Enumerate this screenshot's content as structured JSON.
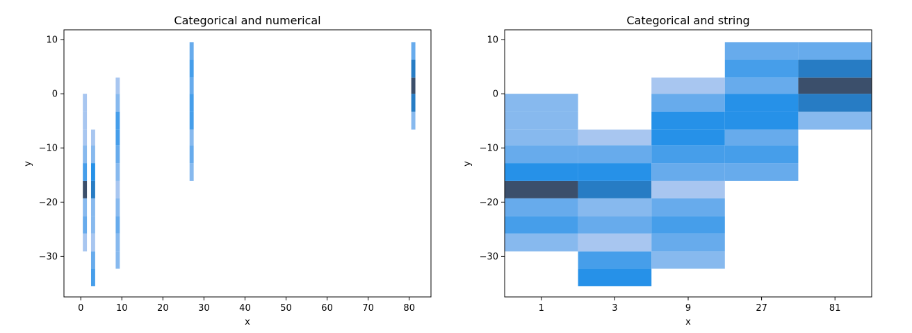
{
  "chart_data": [
    {
      "type": "heatmap",
      "title": "Categorical and numerical",
      "xlabel": "x",
      "ylabel": "y",
      "xlim": [
        -4.1,
        85.3
      ],
      "ylim": [
        -37.5,
        11.8
      ],
      "xticks": [
        0,
        10,
        20,
        30,
        40,
        50,
        60,
        70,
        80
      ],
      "xtick_labels": [
        "0",
        "10",
        "20",
        "30",
        "40",
        "50",
        "60",
        "70",
        "80"
      ],
      "yticks": [
        10,
        0,
        -10,
        -20,
        -30
      ],
      "ytick_labels": [
        "10",
        "0",
        "−10",
        "−20",
        "−30"
      ],
      "bar_width": 1,
      "columns": [
        {
          "x": 1,
          "cells": [
            {
              "y0": -29.1,
              "y1": -25.8,
              "count": 1
            },
            {
              "y0": -25.8,
              "y1": -22.6,
              "count": 3
            },
            {
              "y0": -22.6,
              "y1": -19.3,
              "count": 2
            },
            {
              "y0": -19.3,
              "y1": -16.1,
              "count": 8
            },
            {
              "y0": -16.1,
              "y1": -12.8,
              "count": 4
            },
            {
              "y0": -12.8,
              "y1": -9.5,
              "count": 2
            },
            {
              "y0": -9.5,
              "y1": -6.6,
              "count": 1
            },
            {
              "y0": -6.6,
              "y1": -3.3,
              "count": 1
            },
            {
              "y0": -3.3,
              "y1": 0,
              "count": 1
            }
          ]
        },
        {
          "x": 3,
          "cells": [
            {
              "y0": -35.5,
              "y1": -32.3,
              "count": 4
            },
            {
              "y0": -32.3,
              "y1": -29.1,
              "count": 3
            },
            {
              "y0": -29.1,
              "y1": -25.8,
              "count": 1
            },
            {
              "y0": -25.8,
              "y1": -22.6,
              "count": 2
            },
            {
              "y0": -22.6,
              "y1": -19.3,
              "count": 2
            },
            {
              "y0": -19.3,
              "y1": -16.1,
              "count": 6
            },
            {
              "y0": -16.1,
              "y1": -12.8,
              "count": 5
            },
            {
              "y0": -12.8,
              "y1": -9.5,
              "count": 2
            },
            {
              "y0": -9.5,
              "y1": -6.6,
              "count": 1
            }
          ]
        },
        {
          "x": 9,
          "cells": [
            {
              "y0": -32.3,
              "y1": -29.1,
              "count": 2
            },
            {
              "y0": -29.1,
              "y1": -25.8,
              "count": 2
            },
            {
              "y0": -25.8,
              "y1": -22.6,
              "count": 3
            },
            {
              "y0": -22.6,
              "y1": -19.3,
              "count": 2
            },
            {
              "y0": -19.3,
              "y1": -16.1,
              "count": 1
            },
            {
              "y0": -16.1,
              "y1": -12.8,
              "count": 2
            },
            {
              "y0": -12.8,
              "y1": -9.5,
              "count": 3
            },
            {
              "y0": -9.5,
              "y1": -6.6,
              "count": 4
            },
            {
              "y0": -6.6,
              "y1": -3.3,
              "count": 4
            },
            {
              "y0": -3.3,
              "y1": 0,
              "count": 2
            },
            {
              "y0": 0,
              "y1": 3.0,
              "count": 1
            }
          ]
        },
        {
          "x": 27,
          "cells": [
            {
              "y0": -16.1,
              "y1": -12.8,
              "count": 2
            },
            {
              "y0": -12.8,
              "y1": -9.5,
              "count": 3
            },
            {
              "y0": -9.5,
              "y1": -6.6,
              "count": 2
            },
            {
              "y0": -6.6,
              "y1": -3.3,
              "count": 4
            },
            {
              "y0": -3.3,
              "y1": 0,
              "count": 4
            },
            {
              "y0": 0,
              "y1": 3.0,
              "count": 3
            },
            {
              "y0": 3.0,
              "y1": 6.3,
              "count": 4
            },
            {
              "y0": 6.3,
              "y1": 9.5,
              "count": 3
            }
          ]
        },
        {
          "x": 81,
          "cells": [
            {
              "y0": -6.6,
              "y1": -3.3,
              "count": 2
            },
            {
              "y0": -3.3,
              "y1": 0,
              "count": 6
            },
            {
              "y0": 0,
              "y1": 3.0,
              "count": 8
            },
            {
              "y0": 3.0,
              "y1": 6.3,
              "count": 6
            },
            {
              "y0": 6.3,
              "y1": 9.5,
              "count": 3
            }
          ]
        }
      ]
    },
    {
      "type": "heatmap",
      "title": "Categorical and string",
      "xlabel": "x",
      "ylabel": "y",
      "categories": [
        "1",
        "3",
        "9",
        "27",
        "81"
      ],
      "xlim": [
        -0.5,
        4.5
      ],
      "ylim": [
        -37.5,
        11.8
      ],
      "yticks": [
        10,
        0,
        -10,
        -20,
        -30
      ],
      "ytick_labels": [
        "10",
        "0",
        "−10",
        "−20",
        "−30"
      ],
      "bar_width": 1,
      "columns": [
        {
          "category": "1",
          "cells": [
            {
              "y0": -29.1,
              "y1": -25.8,
              "count": 2
            },
            {
              "y0": -25.8,
              "y1": -22.6,
              "count": 4
            },
            {
              "y0": -22.6,
              "y1": -19.3,
              "count": 3
            },
            {
              "y0": -19.3,
              "y1": -16.1,
              "count": 8
            },
            {
              "y0": -16.1,
              "y1": -12.8,
              "count": 5
            },
            {
              "y0": -12.8,
              "y1": -9.5,
              "count": 3
            },
            {
              "y0": -9.5,
              "y1": -6.6,
              "count": 2
            },
            {
              "y0": -6.6,
              "y1": -3.3,
              "count": 2
            },
            {
              "y0": -3.3,
              "y1": 0,
              "count": 2
            }
          ]
        },
        {
          "category": "3",
          "cells": [
            {
              "y0": -35.5,
              "y1": -32.3,
              "count": 5
            },
            {
              "y0": -32.3,
              "y1": -29.1,
              "count": 4
            },
            {
              "y0": -29.1,
              "y1": -25.8,
              "count": 1
            },
            {
              "y0": -25.8,
              "y1": -22.6,
              "count": 3
            },
            {
              "y0": -22.6,
              "y1": -19.3,
              "count": 2
            },
            {
              "y0": -19.3,
              "y1": -16.1,
              "count": 6
            },
            {
              "y0": -16.1,
              "y1": -12.8,
              "count": 5
            },
            {
              "y0": -12.8,
              "y1": -9.5,
              "count": 3
            },
            {
              "y0": -9.5,
              "y1": -6.6,
              "count": 1
            }
          ]
        },
        {
          "category": "9",
          "cells": [
            {
              "y0": -32.3,
              "y1": -29.1,
              "count": 2
            },
            {
              "y0": -29.1,
              "y1": -25.8,
              "count": 3
            },
            {
              "y0": -25.8,
              "y1": -22.6,
              "count": 4
            },
            {
              "y0": -22.6,
              "y1": -19.3,
              "count": 3
            },
            {
              "y0": -19.3,
              "y1": -16.1,
              "count": 1
            },
            {
              "y0": -16.1,
              "y1": -12.8,
              "count": 3
            },
            {
              "y0": -12.8,
              "y1": -9.5,
              "count": 4
            },
            {
              "y0": -9.5,
              "y1": -6.6,
              "count": 5
            },
            {
              "y0": -6.6,
              "y1": -3.3,
              "count": 5
            },
            {
              "y0": -3.3,
              "y1": 0,
              "count": 3
            },
            {
              "y0": 0,
              "y1": 3.0,
              "count": 1
            }
          ]
        },
        {
          "category": "27",
          "cells": [
            {
              "y0": -16.1,
              "y1": -12.8,
              "count": 3
            },
            {
              "y0": -12.8,
              "y1": -9.5,
              "count": 4
            },
            {
              "y0": -9.5,
              "y1": -6.6,
              "count": 3
            },
            {
              "y0": -6.6,
              "y1": -3.3,
              "count": 5
            },
            {
              "y0": -3.3,
              "y1": 0,
              "count": 5
            },
            {
              "y0": 0,
              "y1": 3.0,
              "count": 3
            },
            {
              "y0": 3.0,
              "y1": 6.3,
              "count": 4
            },
            {
              "y0": 6.3,
              "y1": 9.5,
              "count": 3
            }
          ]
        },
        {
          "category": "81",
          "cells": [
            {
              "y0": -6.6,
              "y1": -3.3,
              "count": 2
            },
            {
              "y0": -3.3,
              "y1": 0,
              "count": 6
            },
            {
              "y0": 0,
              "y1": 3.0,
              "count": 8
            },
            {
              "y0": 3.0,
              "y1": 6.3,
              "count": 6
            },
            {
              "y0": 6.3,
              "y1": 9.5,
              "count": 3
            }
          ]
        }
      ]
    }
  ],
  "colors": {
    "low": "#a8c6f0",
    "high": "#1f8ee8",
    "peak": "#3b4f6b"
  }
}
